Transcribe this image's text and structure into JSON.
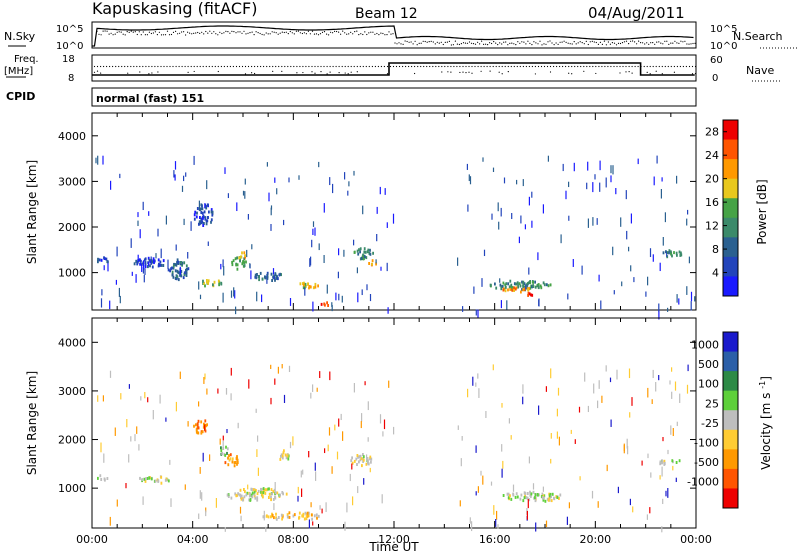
{
  "header": {
    "station": "Kapuskasing (fitACF)",
    "beam": "Beam 12",
    "date": "04/Aug/2011"
  },
  "status_panels": {
    "nsky_label": "N.Sky",
    "nsearch_label": "N.Search",
    "nsky_ticks": [
      "10^5",
      "10^0"
    ],
    "nsearch_ticks": [
      "10^5",
      "10^0"
    ],
    "freq_label": "Freq.",
    "freq_unit": "[MHz]",
    "freq_ticks": [
      "18",
      "8"
    ],
    "nave_label": "Nave",
    "nave_ticks": [
      "60",
      "0"
    ],
    "cpid_label": "CPID",
    "cpid_value": "normal (fast) 151"
  },
  "colors": {
    "power": [
      "#1a1aff",
      "#2244bb",
      "#2a6090",
      "#3b8a6a",
      "#46a346",
      "#e8c81e",
      "#ff9900",
      "#ff5500",
      "#ee0000"
    ],
    "velocity": [
      "#1a1acc",
      "#2b5fa8",
      "#2d8a46",
      "#5ed03a",
      "#bebebe",
      "#ffcc33",
      "#ff9900",
      "#ff5500",
      "#ee0000"
    ]
  },
  "chart_data": [
    {
      "type": "heatmap",
      "panel": "power",
      "ylabel": "Slant Range [km]",
      "xlabel": "",
      "x_ticks": [
        "00:00",
        "04:00",
        "08:00",
        "12:00",
        "16:00",
        "20:00",
        "00:00"
      ],
      "x_range_hours": [
        0,
        24
      ],
      "ylim": [
        180,
        4500
      ],
      "y_ticks": [
        1000,
        2000,
        3000,
        4000
      ],
      "colorbar_label": "Power [dB]",
      "colorbar_ticks": [
        "4",
        "8",
        "12",
        "16",
        "20",
        "24",
        "28"
      ],
      "scatter_blobs": [
        {
          "t": 0.4,
          "r": 1300,
          "dt": 0.5,
          "dr": 120,
          "level": 1
        },
        {
          "t": 2.3,
          "r": 1250,
          "dt": 1.4,
          "dr": 200,
          "level": 1
        },
        {
          "t": 3.4,
          "r": 1100,
          "dt": 0.8,
          "dr": 450,
          "level": 2
        },
        {
          "t": 4.4,
          "r": 2300,
          "dt": 0.8,
          "dr": 500,
          "level": 1
        },
        {
          "t": 4.7,
          "r": 800,
          "dt": 0.9,
          "dr": 150,
          "level": 4
        },
        {
          "t": 5.8,
          "r": 1250,
          "dt": 0.6,
          "dr": 300,
          "level": 4
        },
        {
          "t": 6.0,
          "r": 1400,
          "dt": 0.3,
          "dr": 150,
          "level": 6
        },
        {
          "t": 7.0,
          "r": 950,
          "dt": 1.2,
          "dr": 200,
          "level": 2
        },
        {
          "t": 8.6,
          "r": 750,
          "dt": 1.0,
          "dr": 130,
          "level": 5
        },
        {
          "t": 9.3,
          "r": 350,
          "dt": 0.6,
          "dr": 80,
          "level": 7
        },
        {
          "t": 10.7,
          "r": 1450,
          "dt": 0.9,
          "dr": 250,
          "level": 3
        },
        {
          "t": 11.1,
          "r": 1250,
          "dt": 0.4,
          "dr": 120,
          "level": 6
        },
        {
          "t": 17.0,
          "r": 750,
          "dt": 2.4,
          "dr": 200,
          "level": 3
        },
        {
          "t": 16.9,
          "r": 650,
          "dt": 1.4,
          "dr": 100,
          "level": 6
        },
        {
          "t": 17.4,
          "r": 560,
          "dt": 0.6,
          "dr": 60,
          "level": 8
        },
        {
          "t": 23.0,
          "r": 1450,
          "dt": 1.0,
          "dr": 150,
          "level": 3
        }
      ]
    },
    {
      "type": "heatmap",
      "panel": "velocity",
      "ylabel": "Slant Range [km]",
      "xlabel": "Time UT",
      "x_ticks": [
        "00:00",
        "04:00",
        "08:00",
        "12:00",
        "16:00",
        "20:00",
        "00:00"
      ],
      "x_range_hours": [
        0,
        24
      ],
      "ylim": [
        180,
        4500
      ],
      "y_ticks": [
        1000,
        2000,
        3000,
        4000
      ],
      "colorbar_label": "Velocity [m s^-1]",
      "colorbar_ticks": [
        "1000",
        "500",
        "100",
        "25",
        "-25",
        "-100",
        "-500",
        "-1000"
      ],
      "scatter_blobs": [
        {
          "t": 0.4,
          "r": 1250,
          "dt": 0.5,
          "dr": 120,
          "level": 4
        },
        {
          "t": 2.5,
          "r": 1200,
          "dt": 1.4,
          "dr": 150,
          "level": 4
        },
        {
          "t": 4.3,
          "r": 2300,
          "dt": 0.6,
          "dr": 300,
          "level": 6
        },
        {
          "t": 5.5,
          "r": 1600,
          "dt": 0.6,
          "dr": 250,
          "level": 6
        },
        {
          "t": 5.2,
          "r": 1800,
          "dt": 0.4,
          "dr": 200,
          "level": 3
        },
        {
          "t": 6.5,
          "r": 900,
          "dt": 2.5,
          "dr": 250,
          "level": 4
        },
        {
          "t": 7.6,
          "r": 1700,
          "dt": 0.5,
          "dr": 200,
          "level": 4
        },
        {
          "t": 10.7,
          "r": 1600,
          "dt": 0.9,
          "dr": 250,
          "level": 4
        },
        {
          "t": 8.0,
          "r": 450,
          "dt": 2.5,
          "dr": 150,
          "level": 5
        },
        {
          "t": 17.5,
          "r": 850,
          "dt": 2.5,
          "dr": 200,
          "level": 4
        },
        {
          "t": 23.0,
          "r": 1550,
          "dt": 1.0,
          "dr": 150,
          "level": 4
        }
      ]
    }
  ]
}
